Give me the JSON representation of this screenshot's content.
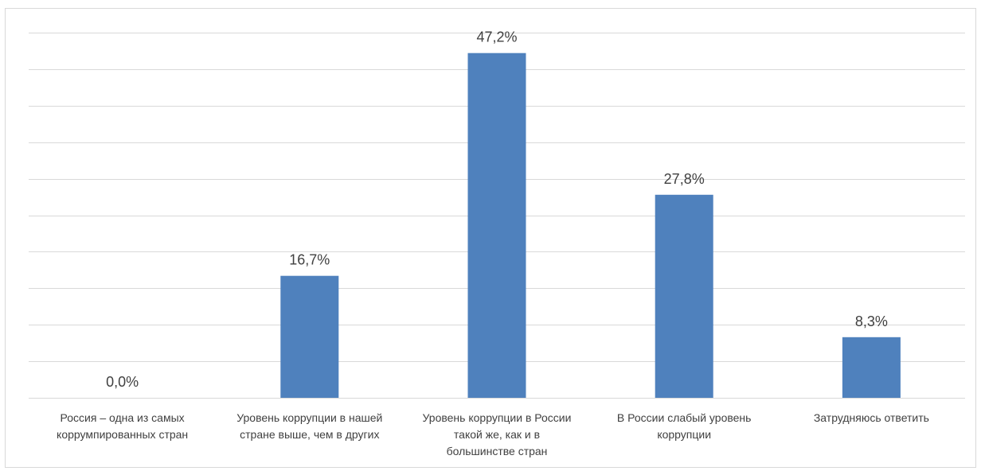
{
  "chart_data": {
    "type": "bar",
    "title": "",
    "xlabel": "",
    "ylabel": "",
    "categories": [
      [
        "Россия – одна из самых",
        "коррумпированных стран"
      ],
      [
        "Уровень коррупции в нашей",
        "стране выше, чем в других"
      ],
      [
        "Уровень коррупции в России",
        "такой же, как и в",
        "большинстве стран"
      ],
      [
        "В России слабый уровень",
        "коррупции"
      ],
      [
        "Затрудняюсь ответить"
      ]
    ],
    "values": [
      0.0,
      16.7,
      47.2,
      27.8,
      8.3
    ],
    "data_labels": [
      "0,0%",
      "16,7%",
      "47,2%",
      "27,8%",
      "8,3%"
    ],
    "ylim": [
      0,
      50
    ],
    "grid": true,
    "legend": "none",
    "colors": {
      "bar": "#4f81bd",
      "grid": "#d9d9d9",
      "text": "#404040"
    }
  }
}
